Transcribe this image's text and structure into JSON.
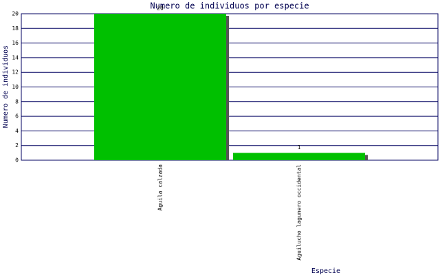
{
  "chart_data": {
    "type": "bar",
    "title": "Numero de individuos por especie",
    "x_label": "Especie",
    "y_label": "Numero de individuos",
    "categories": [
      "Aguila calzada",
      "Aguilucho lagunero occidental"
    ],
    "values": [
      20,
      1
    ],
    "color": "#00c000",
    "ylim": [
      0,
      20
    ],
    "yticks": [
      0,
      2,
      4,
      6,
      8,
      10,
      12,
      14,
      16,
      18,
      20
    ],
    "grid": true
  }
}
